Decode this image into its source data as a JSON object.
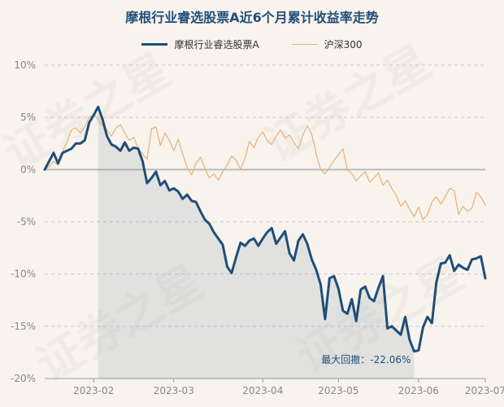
{
  "chart_data": {
    "type": "line",
    "title": "摩根行业睿选股票A近6个月累计收益率走势",
    "xlabel": "",
    "ylabel": "",
    "ylim": [
      -20,
      10
    ],
    "yticks": [
      "10%",
      "5%",
      "0%",
      "-5%",
      "-10%",
      "-15%",
      "-20%"
    ],
    "ytick_values": [
      10,
      5,
      0,
      -5,
      -10,
      -15,
      -20
    ],
    "xticks": [
      "2023-02",
      "2023-03",
      "2023-04",
      "2023-05",
      "2023-06",
      "2023-07"
    ],
    "grid": "horizontal dashed",
    "legend": "top-center",
    "series": [
      {
        "name": "摩根行业睿选股票A",
        "color": "#1f4e79",
        "values": [
          0.0,
          0.8,
          1.6,
          0.6,
          1.6,
          1.8,
          2.0,
          2.5,
          2.5,
          2.8,
          4.5,
          5.2,
          6.0,
          4.8,
          3.2,
          2.4,
          2.2,
          1.8,
          2.6,
          1.8,
          2.1,
          2.0,
          0.8,
          -1.3,
          -0.8,
          -0.2,
          -1.5,
          -1.1,
          -2.0,
          -1.8,
          -2.1,
          -2.8,
          -2.4,
          -3.0,
          -3.1,
          -4.0,
          -4.8,
          -5.2,
          -6.0,
          -6.6,
          -7.2,
          -9.3,
          -9.9,
          -8.4,
          -7.0,
          -7.3,
          -6.8,
          -6.6,
          -7.3,
          -6.6,
          -6.0,
          -5.6,
          -7.1,
          -6.5,
          -5.9,
          -8.0,
          -8.7,
          -6.8,
          -6.2,
          -7.1,
          -8.6,
          -9.6,
          -11.0,
          -14.3,
          -10.4,
          -10.2,
          -11.4,
          -13.5,
          -13.8,
          -12.4,
          -14.5,
          -11.5,
          -11.2,
          -12.3,
          -12.6,
          -11.3,
          -10.2,
          -15.2,
          -15.0,
          -15.4,
          -15.8,
          -14.1,
          -16.3,
          -17.4,
          -17.3,
          -15.1,
          -14.1,
          -14.7,
          -10.8,
          -9.0,
          -8.9,
          -8.2,
          -9.7,
          -9.1,
          -9.4,
          -9.6,
          -8.6,
          -8.5,
          -8.3,
          -10.4
        ]
      },
      {
        "name": "沪深300",
        "color": "#e8b07a",
        "values": [
          0.0,
          0.3,
          0.8,
          0.4,
          1.7,
          2.6,
          3.8,
          4.0,
          3.5,
          4.1,
          5.0,
          5.3,
          4.8,
          4.2,
          3.8,
          3.2,
          4.0,
          4.3,
          3.5,
          2.8,
          3.1,
          2.0,
          1.5,
          1.0,
          3.9,
          4.1,
          2.3,
          3.5,
          2.8,
          1.8,
          2.9,
          1.5,
          0.2,
          -0.5,
          0.6,
          1.2,
          0.1,
          -0.8,
          -0.4,
          -1.0,
          -0.2,
          0.4,
          1.3,
          0.9,
          0.0,
          1.1,
          2.7,
          2.1,
          3.1,
          3.6,
          2.8,
          2.4,
          3.2,
          3.8,
          3.0,
          3.3,
          2.6,
          2.0,
          3.3,
          4.2,
          3.4,
          1.5,
          0.0,
          -0.4,
          0.2,
          0.9,
          1.4,
          2.0,
          0.0,
          -0.4,
          -1.1,
          -0.6,
          -0.2,
          -1.2,
          -0.8,
          -0.3,
          -1.5,
          -1.0,
          -1.8,
          -2.5,
          -3.5,
          -3.0,
          -3.8,
          -4.5,
          -3.6,
          -4.8,
          -4.3,
          -3.1,
          -2.6,
          -3.3,
          -2.6,
          -1.8,
          -2.0,
          -4.3,
          -3.5,
          -4.0,
          -3.7,
          -2.2,
          -2.6,
          -3.4
        ]
      }
    ],
    "annotation": {
      "text": "最大回撤：-22.06%"
    }
  }
}
